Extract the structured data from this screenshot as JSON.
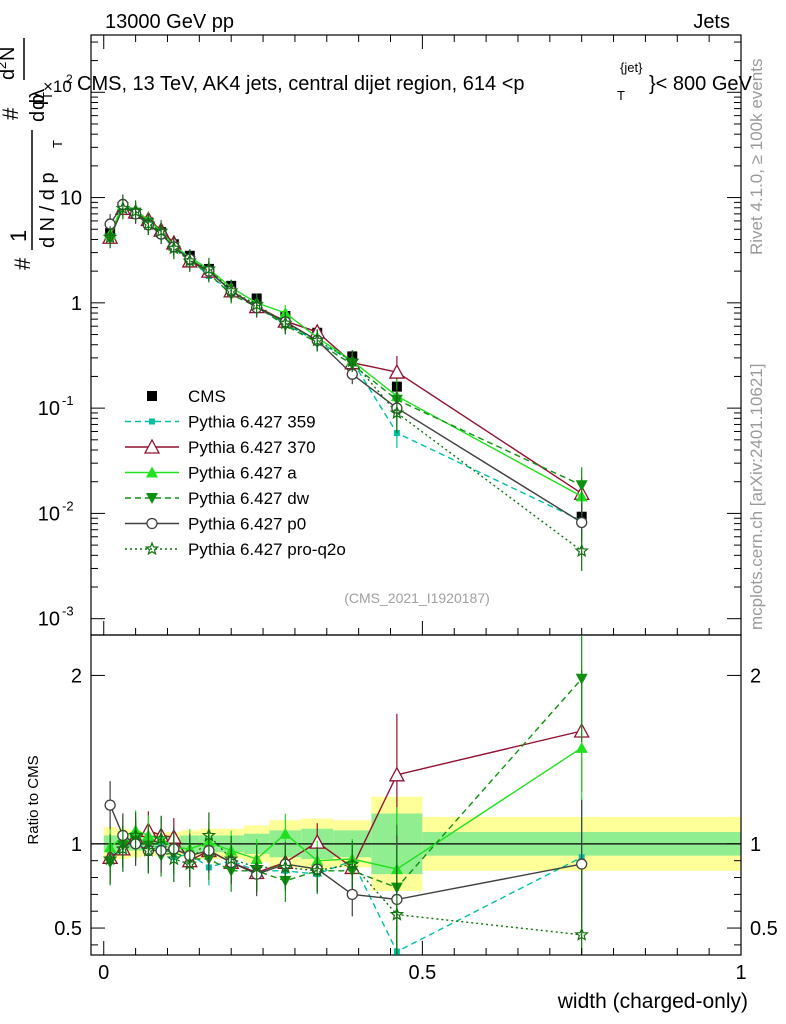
{
  "header": {
    "left": "13000 GeV pp",
    "right": "Jets",
    "title": "CMS, 13 TeV, AK4 jets, central dijet region, 614 <p",
    "title_sup": "{jet}",
    "title_sub": "T",
    "title_end": "}< 800 GeV"
  },
  "side_labels": {
    "rivet": "Rivet 4.1.0, ≥ 100k events",
    "mcplots": "mcplots.cern.ch [arXiv:2401.10621]"
  },
  "watermark": "(CMS_2021_I1920187)",
  "ylabel_top": {
    "hash": "#",
    "one": "1",
    "dN": "d N / d p",
    "dN_sub": "T",
    "hash2": "#",
    "dp": "d p",
    "dp_sub": "T",
    "d2N": "d",
    "d2N_sup": "2",
    "N": "N",
    "dl": "dλ",
    "x10": "×10",
    "x10_sup": "2"
  },
  "ylabel_bottom": "Ratio to CMS",
  "xlabel": "width (charged-only)",
  "colors": {
    "cms": "#000000",
    "p359": "#00c0a0",
    "p370": "#901030",
    "pa": "#20e020",
    "pdw": "#109010",
    "pp0": "#404040",
    "pq2o": "#107010",
    "band_yellow": "#ffff99",
    "band_green": "#90ee90"
  },
  "chart_data": [
    {
      "type": "line",
      "scale": "log",
      "title": "CMS, 13 TeV, AK4 jets, central dijet region, 614 <p_T^{jet}< 800 GeV",
      "xlabel": "width (charged-only)",
      "ylabel": "(1/dN/dp_T) d²N/dp_T dλ",
      "xlim": [
        -0.02,
        1.0
      ],
      "ylim": [
        0.0007,
        350
      ],
      "x_ticks": [
        "0",
        "0.5",
        "1"
      ],
      "y_ticks": [
        "10^{-3}",
        "10^{-2}",
        "10^{-1}",
        "1",
        "10"
      ],
      "x": [
        0.01,
        0.03,
        0.05,
        0.07,
        0.09,
        0.11,
        0.135,
        0.165,
        0.2,
        0.24,
        0.285,
        0.335,
        0.39,
        0.46,
        0.75
      ],
      "series": [
        {
          "name": "CMS",
          "style": "cms",
          "values": [
            4.6,
            8.2,
            7.0,
            5.8,
            4.7,
            3.6,
            2.8,
            2.1,
            1.45,
            1.1,
            0.75,
            0.52,
            0.31,
            0.16,
            0.0093
          ]
        },
        {
          "name": "Pythia 6.427 359",
          "style": "p359",
          "values": [
            4.3,
            8.0,
            7.1,
            5.6,
            4.6,
            3.3,
            2.6,
            1.8,
            1.3,
            0.92,
            0.63,
            0.43,
            0.28,
            0.058,
            0.0085
          ]
        },
        {
          "name": "Pythia 6.427 370",
          "style": "p370",
          "values": [
            4.2,
            7.9,
            7.3,
            6.2,
            4.9,
            3.7,
            2.5,
            2.0,
            1.3,
            0.92,
            0.67,
            0.53,
            0.27,
            0.22,
            0.0155
          ]
        },
        {
          "name": "Pythia 6.427 a",
          "style": "pa",
          "values": [
            4.5,
            8.5,
            7.6,
            6.1,
            4.8,
            3.5,
            2.7,
            2.1,
            1.4,
            1.0,
            0.8,
            0.47,
            0.28,
            0.13,
            0.0145
          ]
        },
        {
          "name": "Pythia 6.427 dw",
          "style": "pdw",
          "values": [
            4.1,
            8.1,
            7.2,
            5.7,
            4.4,
            3.4,
            2.5,
            1.9,
            1.2,
            0.92,
            0.61,
            0.42,
            0.26,
            0.12,
            0.0185
          ]
        },
        {
          "name": "Pythia 6.427 p0",
          "style": "pp0",
          "values": [
            5.6,
            8.6,
            7.0,
            5.5,
            4.5,
            3.4,
            2.6,
            2.0,
            1.3,
            0.9,
            0.66,
            0.44,
            0.21,
            0.1,
            0.0082
          ]
        },
        {
          "name": "Pythia 6.427 pro-q2o",
          "style": "pq2o",
          "values": [
            4.2,
            7.9,
            7.4,
            5.6,
            4.8,
            3.3,
            2.5,
            2.1,
            1.3,
            0.96,
            0.64,
            0.44,
            0.28,
            0.09,
            0.0044
          ]
        }
      ]
    },
    {
      "type": "line",
      "title": "Ratio panel",
      "xlabel": "width (charged-only)",
      "ylabel": "Ratio to CMS",
      "xlim": [
        -0.02,
        1.0
      ],
      "ylim": [
        0.34,
        2.24
      ],
      "x_ticks": [
        "0",
        "0.5",
        "1"
      ],
      "y_ticks": [
        "0.5",
        "1",
        "2"
      ],
      "x": [
        0.01,
        0.03,
        0.05,
        0.07,
        0.09,
        0.11,
        0.135,
        0.165,
        0.2,
        0.24,
        0.285,
        0.335,
        0.39,
        0.46,
        0.75
      ],
      "series": [
        {
          "name": "Pythia 6.427 359",
          "style": "p359",
          "values": [
            0.93,
            0.98,
            1.01,
            0.97,
            0.99,
            0.92,
            0.94,
            0.86,
            0.9,
            0.84,
            0.84,
            0.82,
            0.9,
            0.36,
            0.92
          ]
        },
        {
          "name": "Pythia 6.427 370",
          "style": "p370",
          "values": [
            0.92,
            0.97,
            1.04,
            1.08,
            1.05,
            1.04,
            0.9,
            0.96,
            0.89,
            0.83,
            0.89,
            1.01,
            0.86,
            1.41,
            1.67
          ]
        },
        {
          "name": "Pythia 6.427 a",
          "style": "pa",
          "values": [
            0.98,
            1.04,
            1.08,
            1.05,
            1.03,
            0.98,
            0.97,
            1.01,
            0.96,
            0.91,
            1.06,
            0.9,
            0.91,
            0.85,
            1.57
          ]
        },
        {
          "name": "Pythia 6.427 dw",
          "style": "pdw",
          "values": [
            0.89,
            0.99,
            1.02,
            0.99,
            0.93,
            0.95,
            0.91,
            0.91,
            0.84,
            0.84,
            0.78,
            0.84,
            0.84,
            0.74,
            1.98
          ]
        },
        {
          "name": "Pythia 6.427 p0",
          "style": "pp0",
          "values": [
            1.23,
            1.05,
            1.0,
            0.96,
            0.96,
            0.97,
            0.93,
            0.96,
            0.89,
            0.82,
            0.88,
            0.85,
            0.7,
            0.67,
            0.88
          ]
        },
        {
          "name": "Pythia 6.427 pro-q2o",
          "style": "pq2o",
          "values": [
            0.91,
            0.97,
            1.05,
            0.96,
            1.03,
            0.91,
            0.88,
            1.05,
            0.91,
            0.86,
            0.86,
            0.84,
            0.88,
            0.58,
            0.46
          ]
        }
      ]
    }
  ]
}
